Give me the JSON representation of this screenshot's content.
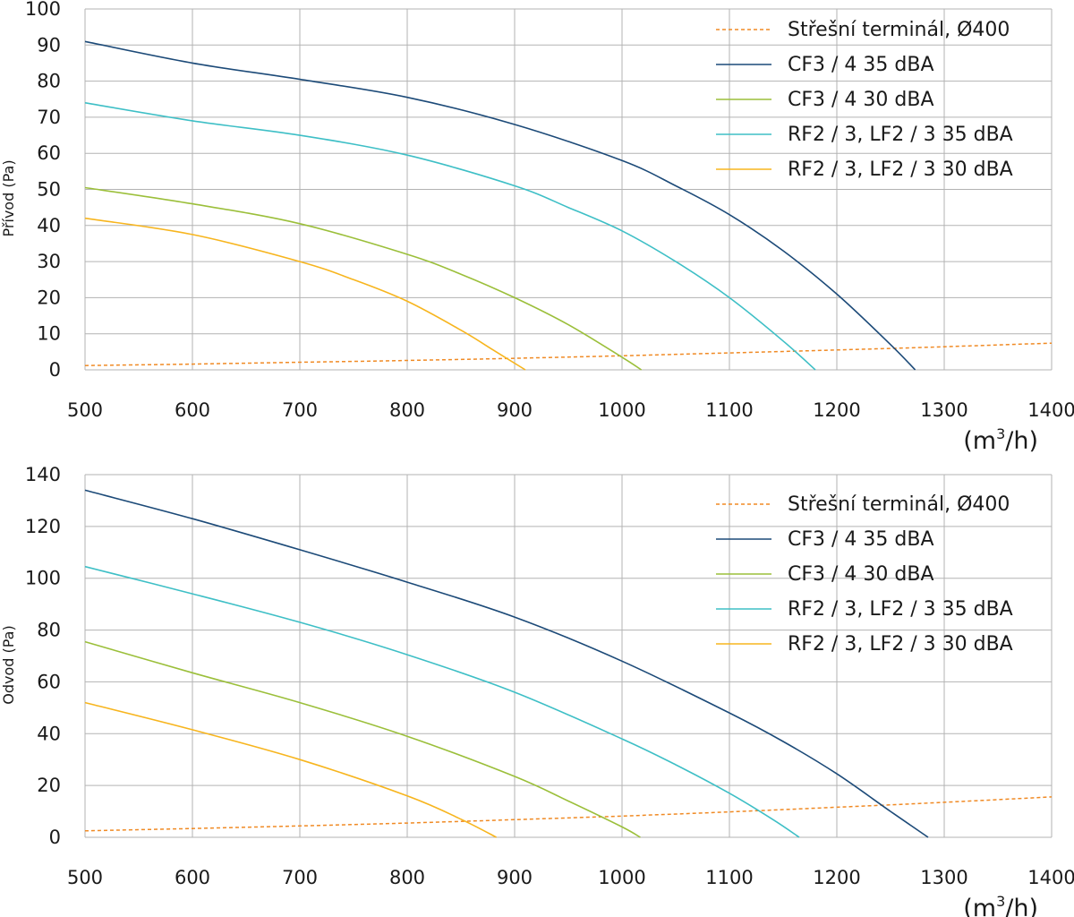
{
  "colors": {
    "roof": "#f08a24",
    "cf3_35": "#1c4a78",
    "cf3_30": "#9bbf3a",
    "rf2_35": "#3ebfc6",
    "rf2_30": "#f7b51e",
    "grid": "#b3b3b3"
  },
  "chart_data": [
    {
      "type": "line",
      "title": "",
      "ylabel": "Přívod (Pa)",
      "xunit_base": "(m",
      "xunit_sup": "3",
      "xunit_rest": "/h)",
      "xlim": [
        500,
        1400
      ],
      "ylim": [
        0,
        100
      ],
      "xticks": [
        500,
        600,
        700,
        800,
        900,
        1000,
        1100,
        1200,
        1300,
        1400
      ],
      "yticks": [
        0,
        10,
        20,
        30,
        40,
        50,
        60,
        70,
        80,
        90,
        100
      ],
      "grid": true,
      "legend_position": "top-right",
      "series": [
        {
          "name": "Střešní terminál, Ø400",
          "color_key": "roof",
          "dashed": true,
          "x": [
            500,
            600,
            700,
            800,
            900,
            1000,
            1100,
            1200,
            1300,
            1400
          ],
          "y": [
            1.2,
            1.6,
            2.1,
            2.6,
            3.2,
            3.9,
            4.7,
            5.5,
            6.4,
            7.4
          ]
        },
        {
          "name": "CF3 / 4 35 dBA",
          "color_key": "cf3_35",
          "dashed": false,
          "x": [
            500,
            600,
            700,
            800,
            900,
            1000,
            1050,
            1100,
            1150,
            1200,
            1250,
            1273
          ],
          "y": [
            91,
            85,
            80.5,
            75.5,
            68,
            58,
            51,
            43,
            33,
            21,
            7,
            0
          ]
        },
        {
          "name": "CF3 / 4 30 dBA",
          "color_key": "cf3_30",
          "dashed": false,
          "x": [
            500,
            600,
            700,
            800,
            850,
            900,
            950,
            1000,
            1018
          ],
          "y": [
            50.5,
            46,
            40.5,
            32,
            26.5,
            20,
            12.5,
            3.5,
            0
          ]
        },
        {
          "name": "RF2 / 3, LF2 / 3 35 dBA",
          "color_key": "rf2_35",
          "dashed": false,
          "x": [
            500,
            600,
            700,
            800,
            900,
            950,
            1000,
            1050,
            1100,
            1150,
            1180
          ],
          "y": [
            74,
            69,
            65,
            59.5,
            51,
            45,
            38.5,
            30,
            20,
            8,
            0
          ]
        },
        {
          "name": "RF2 / 3, LF2 / 3 30 dBA",
          "color_key": "rf2_30",
          "dashed": false,
          "x": [
            500,
            600,
            700,
            750,
            800,
            850,
            880,
            910
          ],
          "y": [
            42,
            37.5,
            30,
            25,
            19,
            11,
            5.5,
            0
          ]
        }
      ]
    },
    {
      "type": "line",
      "title": "",
      "ylabel": "Odvod (Pa)",
      "xunit_base": "(m",
      "xunit_sup": "3",
      "xunit_rest": "/h)",
      "xlim": [
        500,
        1400
      ],
      "ylim": [
        0,
        140
      ],
      "xticks": [
        500,
        600,
        700,
        800,
        900,
        1000,
        1100,
        1200,
        1300,
        1400
      ],
      "yticks": [
        0,
        20,
        40,
        60,
        80,
        100,
        120,
        140
      ],
      "grid": true,
      "legend_position": "top-right",
      "series": [
        {
          "name": "Střešní terminál, Ø400",
          "color_key": "roof",
          "dashed": true,
          "x": [
            500,
            600,
            700,
            800,
            900,
            1000,
            1100,
            1200,
            1300,
            1400
          ],
          "y": [
            2.5,
            3.4,
            4.4,
            5.5,
            6.8,
            8.2,
            9.8,
            11.6,
            13.5,
            15.6
          ]
        },
        {
          "name": "CF3 / 4 35 dBA",
          "color_key": "cf3_35",
          "dashed": false,
          "x": [
            500,
            600,
            700,
            800,
            900,
            1000,
            1100,
            1150,
            1200,
            1250,
            1285
          ],
          "y": [
            134,
            123,
            111,
            98.5,
            85,
            68,
            48,
            37,
            24.5,
            10,
            0
          ]
        },
        {
          "name": "CF3 / 4 30 dBA",
          "color_key": "cf3_30",
          "dashed": false,
          "x": [
            500,
            600,
            700,
            800,
            900,
            950,
            1000,
            1017
          ],
          "y": [
            75.5,
            63.5,
            52,
            39,
            23.5,
            14,
            4,
            0
          ]
        },
        {
          "name": "RF2 / 3, LF2 / 3 35 dBA",
          "color_key": "rf2_35",
          "dashed": false,
          "x": [
            500,
            600,
            700,
            800,
            900,
            1000,
            1050,
            1100,
            1140,
            1165
          ],
          "y": [
            104.5,
            94,
            83,
            70.5,
            56,
            38,
            28,
            17,
            7,
            0
          ]
        },
        {
          "name": "RF2 / 3, LF2 / 3 30 dBA",
          "color_key": "rf2_30",
          "dashed": false,
          "x": [
            500,
            600,
            700,
            800,
            850,
            883
          ],
          "y": [
            52,
            41.5,
            30,
            16,
            7,
            0
          ]
        }
      ]
    }
  ]
}
